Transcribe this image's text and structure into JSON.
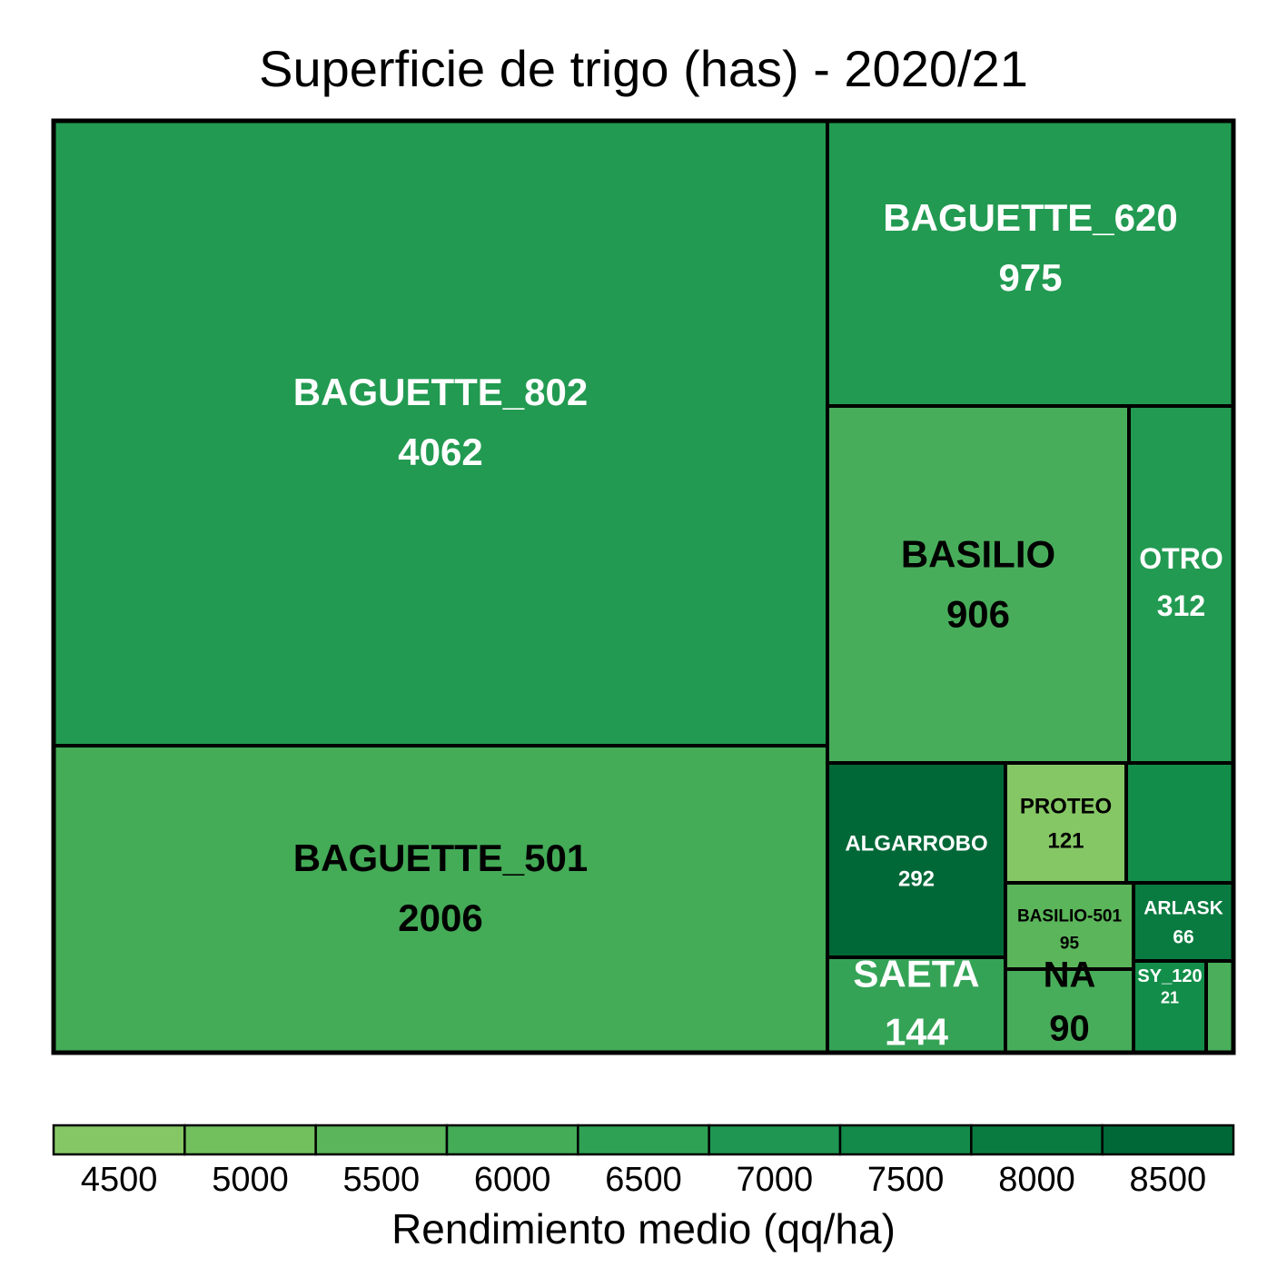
{
  "chart_data": {
    "type": "treemap",
    "title": "Superficie de trigo (has) - 2020/21",
    "size_measure": "Superficie (has)",
    "legend": {
      "title": "Rendimiento medio (qq/ha)",
      "placement": "bottom",
      "ticks": [
        4500,
        5000,
        5500,
        6000,
        6500,
        7000,
        7500,
        8000,
        8500
      ],
      "colors": [
        "#86c765",
        "#72bf5e",
        "#5bb55a",
        "#44ab57",
        "#2fa154",
        "#1f9651",
        "#138a49",
        "#0a7b40",
        "#006837"
      ]
    },
    "items": [
      {
        "name": "BAGUETTE_802",
        "value": 4062,
        "color": "#229a51",
        "label_color": "#ffffff"
      },
      {
        "name": "BAGUETTE_501",
        "value": 2006,
        "color": "#44ab57",
        "label_color": "#000000"
      },
      {
        "name": "BAGUETTE_620",
        "value": 975,
        "color": "#229a51",
        "label_color": "#ffffff"
      },
      {
        "name": "BASILIO",
        "value": 906,
        "color": "#48ad5a",
        "label_color": "#000000"
      },
      {
        "name": "OTRO",
        "value": 312,
        "color": "#229a51",
        "label_color": "#ffffff"
      },
      {
        "name": "ALGARROBO",
        "value": 292,
        "color": "#006837",
        "label_color": "#ffffff"
      },
      {
        "name": "SAETA",
        "value": 144,
        "color": "#34a356",
        "label_color": "#ffffff"
      },
      {
        "name": "PROTEO",
        "value": 121,
        "color": "#86c765",
        "label_color": "#000000"
      },
      {
        "name": "",
        "value": null,
        "color": "#138e4a",
        "label_color": "#ffffff"
      },
      {
        "name": "BASILIO-501",
        "value": 95,
        "color": "#5bb55a",
        "label_color": "#000000"
      },
      {
        "name": "NA",
        "value": 90,
        "color": "#48ad5a",
        "label_color": "#000000"
      },
      {
        "name": "ARLASK",
        "value": 66,
        "color": "#0a7b40",
        "label_color": "#ffffff"
      },
      {
        "name": "SY_120",
        "value": 21,
        "color": "#138e4a",
        "label_color": "#ffffff"
      },
      {
        "name": "",
        "value": null,
        "color": "#4aae5b",
        "label_color": "#000000"
      }
    ]
  }
}
